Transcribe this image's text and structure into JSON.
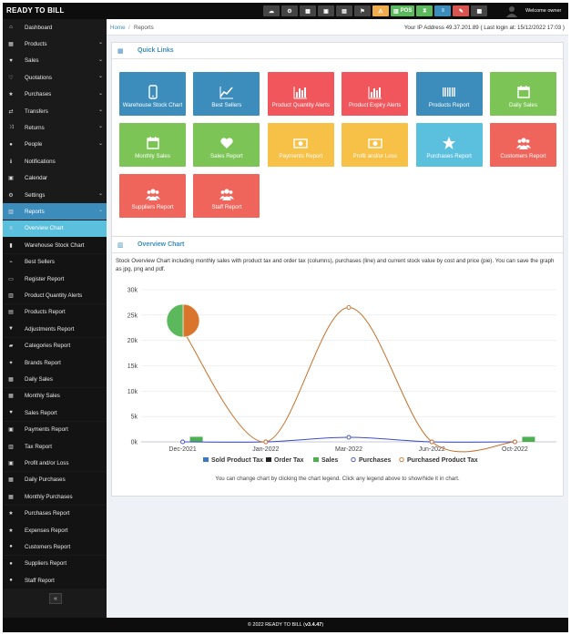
{
  "brand": "READY TO BILL",
  "topbar": {
    "icons": [
      {
        "name": "cloud-icon",
        "color": "#444444",
        "glyph": "☁",
        "label": ""
      },
      {
        "name": "settings-icon",
        "color": "#444444",
        "glyph": "⚙",
        "label": ""
      },
      {
        "name": "calculator-icon",
        "color": "#444444",
        "glyph": "▦",
        "label": ""
      },
      {
        "name": "calendar-icon",
        "color": "#444444",
        "glyph": "▣",
        "label": ""
      },
      {
        "name": "clipboard-icon",
        "color": "#444444",
        "glyph": "▤",
        "label": ""
      },
      {
        "name": "flag-icon",
        "color": "#444444",
        "glyph": "⚑",
        "label": ""
      },
      {
        "name": "alert-icon",
        "color": "#f0ad4e",
        "glyph": "⚠",
        "label": ""
      },
      {
        "name": "pos-button",
        "color": "#5cb85c",
        "glyph": "▥",
        "label": "POS"
      },
      {
        "name": "hourglass-icon",
        "color": "#5cb85c",
        "glyph": "⧗",
        "label": ""
      },
      {
        "name": "list-icon",
        "color": "#3c8dbc",
        "glyph": "≡",
        "label": ""
      },
      {
        "name": "ruler-icon",
        "color": "#d9534f",
        "glyph": "✎",
        "label": ""
      },
      {
        "name": "grid-icon",
        "color": "#444444",
        "glyph": "▦",
        "label": ""
      }
    ],
    "welcome": "Welcome owner"
  },
  "sidebar": {
    "items": [
      {
        "name": "sidebar-item-dashboard",
        "icon": "⌂",
        "label": "Dashboard",
        "chev": false
      },
      {
        "name": "sidebar-item-products",
        "icon": "▦",
        "label": "Products",
        "chev": true
      },
      {
        "name": "sidebar-item-sales",
        "icon": "♥",
        "label": "Sales",
        "chev": true
      },
      {
        "name": "sidebar-item-quotations",
        "icon": "♡",
        "label": "Quotations",
        "chev": true
      },
      {
        "name": "sidebar-item-purchases",
        "icon": "★",
        "label": "Purchases",
        "chev": true
      },
      {
        "name": "sidebar-item-transfers",
        "icon": "⇄",
        "label": "Transfers",
        "chev": true
      },
      {
        "name": "sidebar-item-returns",
        "icon": "⤨",
        "label": "Returns",
        "chev": true
      },
      {
        "name": "sidebar-item-people",
        "icon": "●",
        "label": "People",
        "chev": true
      },
      {
        "name": "sidebar-item-notifications",
        "icon": "ℹ",
        "label": "Notifications",
        "chev": false
      },
      {
        "name": "sidebar-item-calendar",
        "icon": "▣",
        "label": "Calendar",
        "chev": false
      },
      {
        "name": "sidebar-item-settings",
        "icon": "⚙",
        "label": "Settings",
        "chev": true
      },
      {
        "name": "sidebar-item-reports",
        "icon": "▥",
        "label": "Reports",
        "chev": true,
        "state": "reports"
      },
      {
        "name": "sidebar-item-overview-chart",
        "icon": "≡",
        "label": "Overview Chart",
        "chev": false,
        "state": "active"
      },
      {
        "name": "sidebar-item-warehouse-stock-chart",
        "icon": "▮",
        "label": "Warehouse Stock Chart",
        "chev": false,
        "state": "sub"
      },
      {
        "name": "sidebar-item-best-sellers",
        "icon": "⌁",
        "label": "Best Sellers",
        "chev": false,
        "state": "sub"
      },
      {
        "name": "sidebar-item-register-report",
        "icon": "▭",
        "label": "Register Report",
        "chev": false,
        "state": "sub"
      },
      {
        "name": "sidebar-item-product-quantity-alerts",
        "icon": "▥",
        "label": "Product Quantity Alerts",
        "chev": false,
        "state": "sub"
      },
      {
        "name": "sidebar-item-products-report",
        "icon": "▤",
        "label": "Products Report",
        "chev": false,
        "state": "sub"
      },
      {
        "name": "sidebar-item-adjustments-report",
        "icon": "▼",
        "label": "Adjustments Report",
        "chev": false,
        "state": "sub"
      },
      {
        "name": "sidebar-item-categories-report",
        "icon": "▰",
        "label": "Categories Report",
        "chev": false,
        "state": "sub"
      },
      {
        "name": "sidebar-item-brands-report",
        "icon": "✦",
        "label": "Brands Report",
        "chev": false,
        "state": "sub"
      },
      {
        "name": "sidebar-item-daily-sales",
        "icon": "▦",
        "label": "Daily Sales",
        "chev": false,
        "state": "sub"
      },
      {
        "name": "sidebar-item-monthly-sales",
        "icon": "▦",
        "label": "Monthly Sales",
        "chev": false,
        "state": "sub"
      },
      {
        "name": "sidebar-item-sales-report",
        "icon": "♥",
        "label": "Sales Report",
        "chev": false,
        "state": "sub"
      },
      {
        "name": "sidebar-item-payments-report",
        "icon": "▣",
        "label": "Payments Report",
        "chev": false,
        "state": "sub"
      },
      {
        "name": "sidebar-item-tax-report",
        "icon": "▥",
        "label": "Tax Report",
        "chev": false,
        "state": "sub"
      },
      {
        "name": "sidebar-item-profit-loss",
        "icon": "▣",
        "label": "Profit and/or Loss",
        "chev": false,
        "state": "sub"
      },
      {
        "name": "sidebar-item-daily-purchases",
        "icon": "▦",
        "label": "Daily Purchases",
        "chev": false,
        "state": "sub"
      },
      {
        "name": "sidebar-item-monthly-purchases",
        "icon": "▦",
        "label": "Monthly Purchases",
        "chev": false,
        "state": "sub"
      },
      {
        "name": "sidebar-item-purchases-report",
        "icon": "★",
        "label": "Purchases Report",
        "chev": false,
        "state": "sub"
      },
      {
        "name": "sidebar-item-expenses-report",
        "icon": "★",
        "label": "Expenses Report",
        "chev": false,
        "state": "sub"
      },
      {
        "name": "sidebar-item-customers-report",
        "icon": "●",
        "label": "Customers Report",
        "chev": false,
        "state": "sub"
      },
      {
        "name": "sidebar-item-suppliers-report",
        "icon": "●",
        "label": "Suppliers Report",
        "chev": false,
        "state": "sub"
      },
      {
        "name": "sidebar-item-staff-report",
        "icon": "●",
        "label": "Staff Report",
        "chev": false,
        "state": "sub"
      }
    ],
    "collapse_glyph": "«"
  },
  "breadcrumb": {
    "home": "Home",
    "sep": "/",
    "current": "Reports"
  },
  "ip_info": "Your IP Address 49.37.201.89 ( Last login at: 15/12/2022 17:03 )",
  "quick_links": {
    "title": "Quick Links",
    "tiles": [
      {
        "name": "tile-warehouse-stock-chart",
        "label": "Warehouse Stock Chart",
        "color": "#3c8dbc",
        "icon": "phone-icon"
      },
      {
        "name": "tile-best-sellers",
        "label": "Best Sellers",
        "color": "#3c8dbc",
        "icon": "trend-icon"
      },
      {
        "name": "tile-product-quantity-alerts",
        "label": "Product Quantity Alerts",
        "color": "#f0565b",
        "icon": "bar-chart-icon"
      },
      {
        "name": "tile-product-expiry-alerts",
        "label": "Product Expiry Alerts",
        "color": "#f0565b",
        "icon": "bar-chart-icon"
      },
      {
        "name": "tile-products-report",
        "label": "Products Report",
        "color": "#3c8dbc",
        "icon": "barcode-icon"
      },
      {
        "name": "tile-daily-sales",
        "label": "Daily Sales",
        "color": "#7bc455",
        "icon": "calendar-icon"
      },
      {
        "name": "tile-monthly-sales",
        "label": "Monthly Sales",
        "color": "#7bc455",
        "icon": "calendar-icon"
      },
      {
        "name": "tile-sales-report",
        "label": "Sales Report",
        "color": "#7bc455",
        "icon": "heart-icon"
      },
      {
        "name": "tile-payments-report",
        "label": "Payments Report",
        "color": "#f7c047",
        "icon": "money-icon"
      },
      {
        "name": "tile-profit-loss",
        "label": "Profit and/or Loss",
        "color": "#f7c047",
        "icon": "money-icon"
      },
      {
        "name": "tile-purchases-report",
        "label": "Purchases Report",
        "color": "#5bc0de",
        "icon": "star-icon"
      },
      {
        "name": "tile-customers-report",
        "label": "Customers Report",
        "color": "#f0655b",
        "icon": "users-icon"
      },
      {
        "name": "tile-suppliers-report",
        "label": "Suppliers Report",
        "color": "#f0655b",
        "icon": "users-icon"
      },
      {
        "name": "tile-staff-report",
        "label": "Staff Report",
        "color": "#f0655b",
        "icon": "users-icon"
      }
    ]
  },
  "overview": {
    "title": "Overview Chart",
    "description": "Stock Overview Chart including monthly sales with product tax and order tax (columns), purchases (line) and current stock value by cost and price (pie). You can save the graph as jpg, png and pdf.",
    "hint": "You can change chart by clicking the chart legend. Click any legend above to show/hide it in chart."
  },
  "chart_data": {
    "type": "line",
    "categories": [
      "Dec-2021",
      "Jan-2022",
      "Mar-2022",
      "Jun-2022",
      "Oct-2022"
    ],
    "ylim": [
      0,
      30000
    ],
    "yticks": [
      0,
      5000,
      10000,
      15000,
      20000,
      25000,
      30000
    ],
    "ytick_labels": [
      "0k",
      "5k",
      "10k",
      "15k",
      "20k",
      "25k",
      "30k"
    ],
    "series": [
      {
        "name": "Sold Product Tax",
        "type": "column",
        "color": "#3c78c8",
        "values": [
          0,
          0,
          0,
          0,
          0
        ]
      },
      {
        "name": "Order Tax",
        "type": "column",
        "color": "#222222",
        "values": [
          0,
          0,
          0,
          0,
          0
        ]
      },
      {
        "name": "Sales",
        "type": "column",
        "color": "#4caf50",
        "values": [
          1000,
          0,
          0,
          0,
          1000
        ]
      },
      {
        "name": "Purchases",
        "type": "line",
        "color": "#3c4ec8",
        "values": [
          0,
          0,
          900,
          0,
          0
        ]
      },
      {
        "name": "Purchased Product Tax",
        "type": "line",
        "color": "#c8702a",
        "values": [
          22000,
          0,
          26500,
          0,
          0
        ]
      }
    ],
    "pie": {
      "slices": [
        {
          "label": "stock value by cost",
          "value": 50,
          "color": "#d9752d"
        },
        {
          "label": "stock value by price",
          "value": 50,
          "color": "#5cb85c"
        }
      ]
    }
  }
}
